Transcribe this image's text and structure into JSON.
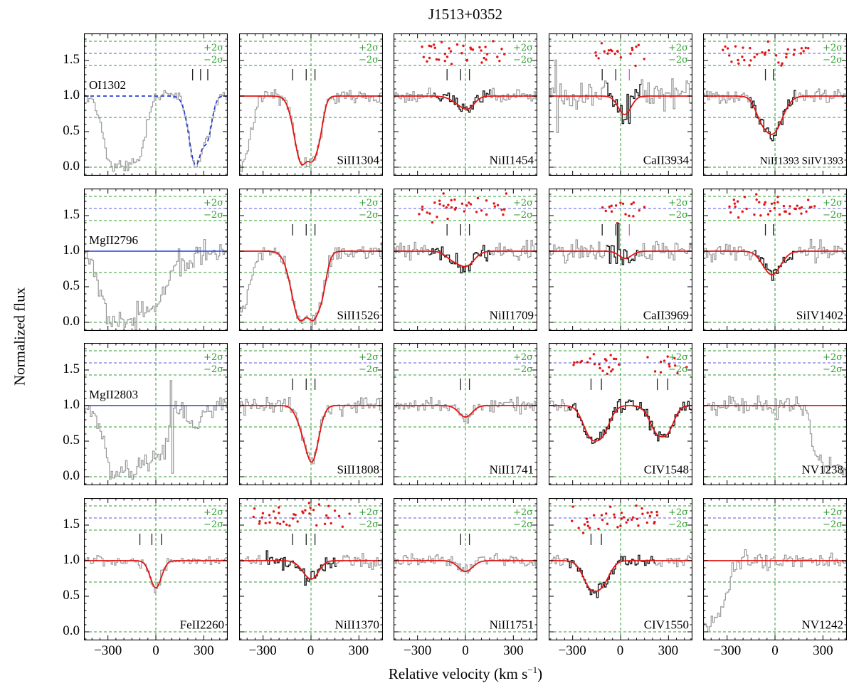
{
  "title": "J1513+0352",
  "ylabel": "Normalized flux",
  "xlabel": {
    "pre": "Relative velocity (km s",
    "sup": "−1",
    "post": ")"
  },
  "chart_data": {
    "type": "line",
    "grid": {
      "rows": 4,
      "cols": 5
    },
    "x_range": [
      -450,
      450
    ],
    "y_range": [
      -0.12,
      1.88
    ],
    "x_ticks": [
      -300,
      0,
      300
    ],
    "x_tick_labels": [
      "−300",
      "0",
      "300"
    ],
    "x_minor_step": 50,
    "y_ticks": [
      0.0,
      0.5,
      1.0,
      1.5
    ],
    "y_tick_labels": [
      "0.0",
      "0.5",
      "1.0",
      "1.5"
    ],
    "y_minor_step": 0.1,
    "h_guides": [
      0.0,
      0.7
    ],
    "sigma": {
      "plus_line": 1.77,
      "zero_line": 1.6,
      "minus_line": 1.43,
      "plus_label": "+2σ",
      "minus_label": "−2σ",
      "plus_label_y": 1.675,
      "minus_label_y": 1.505
    },
    "colors": {
      "spectrum_gray": "#999999",
      "fit_region_black": "#161616",
      "model_red": "#e41414",
      "model_blue": "#2b3fd6",
      "guide_green": "#2f9e2f",
      "residual_line_blue": "#5a5ae0",
      "component_tick": "#222222",
      "residual_dot": "#e41414"
    },
    "panels": [
      {
        "label": "OI1302",
        "label_pos": "top-left",
        "seed": 3,
        "noise": 0.045,
        "gray": [
          {
            "v": -270,
            "w": 55,
            "d": 1.0
          },
          {
            "v": -185,
            "w": 55,
            "d": 1.0
          },
          {
            "v": -115,
            "w": 45,
            "d": 0.9
          }
        ],
        "model": {
          "type": "blue-dashed",
          "components": [
            {
              "v": 250,
              "w": 42,
              "d": 0.97
            },
            {
              "v": 320,
              "w": 30,
              "d": 0.55
            }
          ]
        },
        "marks": [
          {
            "v": 230
          },
          {
            "v": 280
          },
          {
            "v": 325
          }
        ],
        "black": null,
        "residuals": null,
        "spikes": []
      },
      {
        "label": "SiII1304",
        "label_pos": "bottom-right",
        "seed": 7,
        "noise": 0.05,
        "gray": [
          {
            "v": -440,
            "w": 55,
            "d": 1.0
          }
        ],
        "model": {
          "type": "red",
          "components": [
            {
              "v": -55,
              "w": 48,
              "d": 0.95
            },
            {
              "v": 5,
              "w": 40,
              "d": 0.85
            },
            {
              "v": 45,
              "w": 28,
              "d": 0.35
            }
          ]
        },
        "marks": [
          {
            "v": -115
          },
          {
            "v": -30
          },
          {
            "v": 25
          }
        ],
        "black": null,
        "residuals": null,
        "spikes": []
      },
      {
        "label": "NiII1454",
        "label_pos": "bottom-right",
        "seed": 11,
        "noise": 0.055,
        "gray": [],
        "model": {
          "type": "red",
          "components": [
            {
              "v": -30,
              "w": 55,
              "d": 0.1
            },
            {
              "v": 20,
              "w": 40,
              "d": 0.12
            }
          ]
        },
        "marks": [
          {
            "v": -115
          },
          {
            "v": -30
          },
          {
            "v": 25
          }
        ],
        "black": [
          -200,
          160
        ],
        "residuals": [
          [
            -280,
            260
          ]
        ],
        "spikes": []
      },
      {
        "label": "CaII3934",
        "label_pos": "bottom-right",
        "seed": 13,
        "noise": 0.1,
        "gray": [],
        "model": {
          "type": "red",
          "components": [
            {
              "v": 25,
              "w": 40,
              "d": 0.26
            }
          ]
        },
        "marks": [
          {
            "v": -115
          },
          {
            "v": -30
          },
          {
            "v": 55,
            "color": "#d95fd9"
          }
        ],
        "black": [
          -90,
          130
        ],
        "residuals": [
          [
            -160,
            160
          ]
        ],
        "spikes": [
          {
            "v": -405,
            "amp": 0.5
          },
          {
            "v": -395,
            "amp": -0.45
          },
          {
            "v": 45,
            "amp": 0.3
          }
        ]
      },
      {
        "label": "NiII1393 SiIV1393",
        "label_pos": "bottom-right",
        "label_size": 15,
        "seed": 17,
        "noise": 0.055,
        "gray": [],
        "model": {
          "type": "red",
          "components": [
            {
              "v": -15,
              "w": 60,
              "d": 0.52
            },
            {
              "v": -85,
              "w": 38,
              "d": 0.18
            }
          ]
        },
        "marks": [
          {
            "v": -60
          },
          {
            "v": -10
          }
        ],
        "black": [
          -160,
          130
        ],
        "residuals": [
          [
            -330,
            240
          ]
        ],
        "spikes": []
      },
      {
        "label": "MgII2796",
        "label_pos": "top-left",
        "seed": 19,
        "noise": 0.07,
        "gray": [
          {
            "v": -270,
            "w": 75,
            "d": 1.0
          },
          {
            "v": -160,
            "w": 70,
            "d": 1.0
          },
          {
            "v": -40,
            "w": 55,
            "d": 0.8
          },
          {
            "v": 40,
            "w": 45,
            "d": 0.55
          },
          {
            "v": 195,
            "w": 35,
            "d": 0.25
          }
        ],
        "model": {
          "type": "blue-flat",
          "components": []
        },
        "marks": [],
        "black": null,
        "residuals": null,
        "spikes": []
      },
      {
        "label": "SiII1526",
        "label_pos": "bottom-right",
        "seed": 23,
        "noise": 0.05,
        "gray": [
          {
            "v": -430,
            "w": 45,
            "d": 0.85
          }
        ],
        "model": {
          "type": "red",
          "components": [
            {
              "v": -65,
              "w": 55,
              "d": 0.97
            },
            {
              "v": 10,
              "w": 50,
              "d": 0.96
            },
            {
              "v": 60,
              "w": 30,
              "d": 0.4
            }
          ]
        },
        "marks": [
          {
            "v": -115
          },
          {
            "v": -30
          },
          {
            "v": 25
          }
        ],
        "black": null,
        "residuals": null,
        "spikes": []
      },
      {
        "label": "NiII1709",
        "label_pos": "bottom-right",
        "seed": 29,
        "noise": 0.06,
        "gray": [],
        "model": {
          "type": "red",
          "components": [
            {
              "v": -80,
              "w": 45,
              "d": 0.1
            },
            {
              "v": 5,
              "w": 50,
              "d": 0.2
            }
          ]
        },
        "marks": [
          {
            "v": -115
          },
          {
            "v": -30
          },
          {
            "v": 25
          }
        ],
        "black": [
          -230,
          160
        ],
        "residuals": [
          [
            -300,
            260
          ]
        ],
        "spikes": []
      },
      {
        "label": "CaII3969",
        "label_pos": "bottom-right",
        "seed": 31,
        "noise": 0.09,
        "gray": [],
        "model": {
          "type": "red",
          "components": [
            {
              "v": 30,
              "w": 40,
              "d": 0.1
            }
          ]
        },
        "marks": [
          {
            "v": -115
          },
          {
            "v": -30
          },
          {
            "v": 55,
            "color": "#d95fd9"
          }
        ],
        "black": [
          -90,
          110
        ],
        "residuals": [
          [
            -120,
            160
          ]
        ],
        "spikes": [
          {
            "v": -10,
            "amp": 0.4
          }
        ]
      },
      {
        "label": "SiIV1402",
        "label_pos": "bottom-right",
        "seed": 37,
        "noise": 0.06,
        "gray": [],
        "model": {
          "type": "red",
          "components": [
            {
              "v": -20,
              "w": 55,
              "d": 0.33
            }
          ]
        },
        "marks": [
          {
            "v": -60
          },
          {
            "v": -10
          }
        ],
        "black": [
          -130,
          130
        ],
        "residuals": [
          [
            -300,
            250
          ]
        ],
        "spikes": []
      },
      {
        "label": "MgII2803",
        "label_pos": "top-left",
        "seed": 41,
        "noise": 0.07,
        "gray": [
          {
            "v": -250,
            "w": 70,
            "d": 1.0
          },
          {
            "v": -150,
            "w": 65,
            "d": 0.95
          },
          {
            "v": -30,
            "w": 55,
            "d": 0.75
          },
          {
            "v": 45,
            "w": 40,
            "d": 0.5
          },
          {
            "v": 230,
            "w": 40,
            "d": 0.3
          }
        ],
        "model": {
          "type": "blue-flat",
          "components": []
        },
        "marks": [],
        "black": null,
        "residuals": null,
        "spikes": [
          {
            "v": 95,
            "amp": 0.45
          },
          {
            "v": 105,
            "amp": -0.85
          }
        ]
      },
      {
        "label": "SiII1808",
        "label_pos": "bottom-right",
        "seed": 43,
        "noise": 0.06,
        "gray": [],
        "model": {
          "type": "red",
          "components": [
            {
              "v": -55,
              "w": 40,
              "d": 0.2
            },
            {
              "v": 5,
              "w": 42,
              "d": 0.78
            }
          ]
        },
        "marks": [
          {
            "v": -115
          },
          {
            "v": -30
          },
          {
            "v": 25
          }
        ],
        "black": null,
        "residuals": null,
        "spikes": []
      },
      {
        "label": "NiII1741",
        "label_pos": "bottom-right",
        "seed": 47,
        "noise": 0.05,
        "gray": [],
        "model": {
          "type": "red",
          "components": [
            {
              "v": 0,
              "w": 42,
              "d": 0.16
            }
          ]
        },
        "marks": [
          {
            "v": -30
          },
          {
            "v": 25
          }
        ],
        "black": null,
        "residuals": null,
        "spikes": []
      },
      {
        "label": "CIV1548",
        "label_pos": "bottom-right",
        "seed": 53,
        "noise": 0.045,
        "gray": [],
        "model": {
          "type": "red",
          "components": [
            {
              "v": -185,
              "w": 50,
              "d": 0.4
            },
            {
              "v": -115,
              "w": 48,
              "d": 0.35
            },
            {
              "v": 230,
              "w": 48,
              "d": 0.35
            },
            {
              "v": 295,
              "w": 42,
              "d": 0.3
            }
          ]
        },
        "marks": [
          {
            "v": -185
          },
          {
            "v": -120
          },
          {
            "v": 230
          },
          {
            "v": 295
          }
        ],
        "black": [
          -330,
          445
        ],
        "residuals": [
          [
            -300,
            -10
          ],
          [
            120,
            430
          ]
        ],
        "spikes": []
      },
      {
        "label": "NV1238",
        "label_pos": "bottom-right",
        "seed": 59,
        "noise": 0.07,
        "gray": [
          {
            "v": 320,
            "w": 55,
            "d": 0.9
          },
          {
            "v": 445,
            "w": 70,
            "d": 0.95
          },
          {
            "v": 255,
            "w": 30,
            "d": 0.4
          }
        ],
        "model": {
          "type": "red-flat",
          "components": []
        },
        "marks": [],
        "black": null,
        "residuals": null,
        "spikes": []
      },
      {
        "label": "FeII2260",
        "label_pos": "bottom-right",
        "seed": 61,
        "noise": 0.035,
        "gray": [],
        "model": {
          "type": "red",
          "components": [
            {
              "v": 0,
              "w": 35,
              "d": 0.38
            }
          ]
        },
        "marks": [
          {
            "v": -100
          },
          {
            "v": -25
          },
          {
            "v": 35
          }
        ],
        "black": null,
        "residuals": null,
        "spikes": []
      },
      {
        "label": "NiII1370",
        "label_pos": "bottom-right",
        "seed": 67,
        "noise": 0.055,
        "gray": [],
        "model": {
          "type": "red",
          "components": [
            {
              "v": -30,
              "w": 45,
              "d": 0.1
            },
            {
              "v": 10,
              "w": 42,
              "d": 0.2
            }
          ]
        },
        "marks": [
          {
            "v": -115
          },
          {
            "v": -30
          },
          {
            "v": 25
          }
        ],
        "black": [
          -290,
          160
        ],
        "residuals": [
          [
            -360,
            250
          ]
        ],
        "spikes": []
      },
      {
        "label": "NiII1751",
        "label_pos": "bottom-right",
        "seed": 71,
        "noise": 0.05,
        "gray": [],
        "model": {
          "type": "red",
          "components": [
            {
              "v": 0,
              "w": 45,
              "d": 0.15
            }
          ]
        },
        "marks": [
          {
            "v": -30
          },
          {
            "v": 25
          }
        ],
        "black": null,
        "residuals": null,
        "spikes": []
      },
      {
        "label": "CIV1550",
        "label_pos": "bottom-right",
        "seed": 73,
        "noise": 0.045,
        "gray": [],
        "model": {
          "type": "red",
          "components": [
            {
              "v": -185,
              "w": 50,
              "d": 0.35
            },
            {
              "v": -115,
              "w": 48,
              "d": 0.28
            }
          ]
        },
        "marks": [
          {
            "v": -185
          },
          {
            "v": -120
          }
        ],
        "black": [
          -340,
          215
        ],
        "residuals": [
          [
            -310,
            240
          ]
        ],
        "spikes": []
      },
      {
        "label": "NV1242",
        "label_pos": "bottom-right",
        "seed": 79,
        "noise": 0.06,
        "gray": [
          {
            "v": -430,
            "w": 75,
            "d": 0.92
          },
          {
            "v": -345,
            "w": 45,
            "d": 0.45
          }
        ],
        "model": {
          "type": "red-flat",
          "components": []
        },
        "marks": [],
        "black": null,
        "residuals": null,
        "spikes": []
      }
    ]
  }
}
